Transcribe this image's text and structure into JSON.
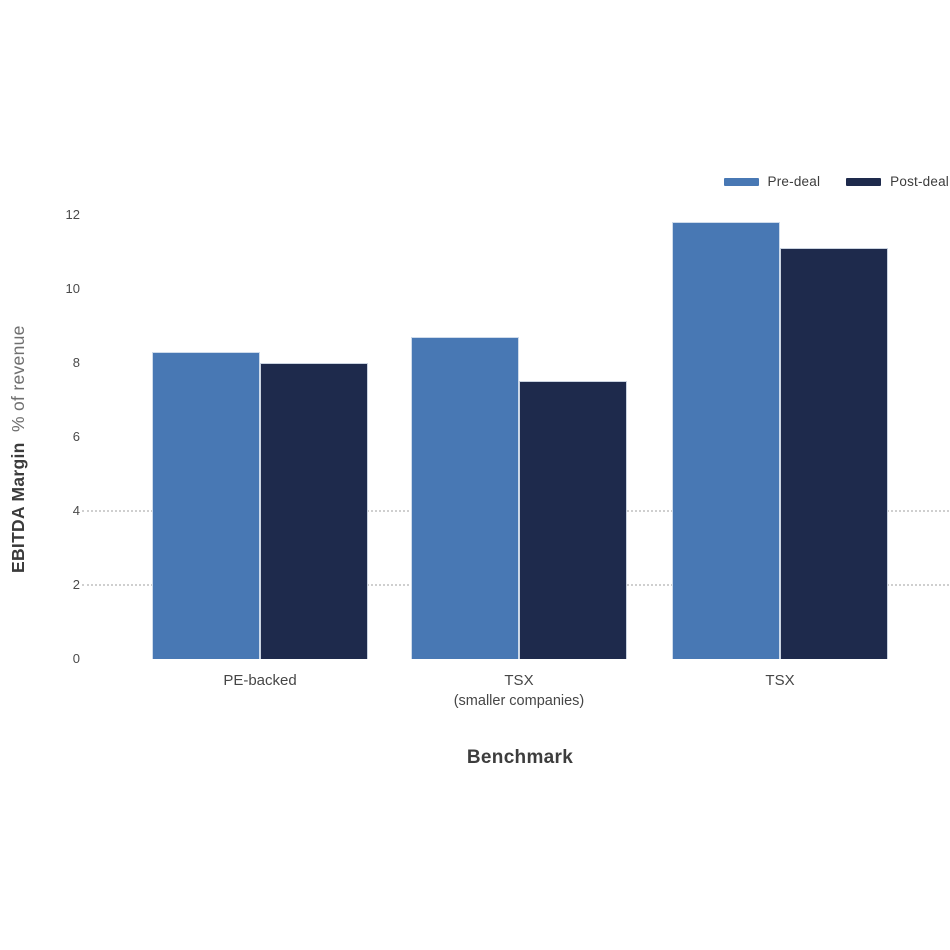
{
  "chart_data": {
    "type": "bar",
    "xlabel": "Benchmark",
    "ylabel_bold": "EBITDA Margin",
    "ylabel_light": "% of revenue",
    "categories": [
      [
        "PE-backed"
      ],
      [
        "TSX",
        "(smaller companies)"
      ],
      [
        "TSX"
      ]
    ],
    "series": [
      {
        "name": "Pre-deal",
        "color": "#4878B4",
        "values": [
          8.3,
          8.7,
          11.8
        ]
      },
      {
        "name": "Post-deal",
        "color": "#1E2A4C",
        "values": [
          8.0,
          7.5,
          11.1
        ]
      }
    ],
    "ylim": [
      0,
      12
    ],
    "yticks": [
      0,
      2,
      4,
      6,
      8,
      10,
      12
    ],
    "gridlines_at": [
      2,
      4
    ],
    "grid_style": "dotted",
    "legend_position": "top-right",
    "colors": {
      "grid": "#cfcfcf",
      "tick_text": "#4a4a4a",
      "category_text": "#464646",
      "axis_title_text": "#3d3d3d",
      "bar_edge": "#dde6f1"
    }
  }
}
